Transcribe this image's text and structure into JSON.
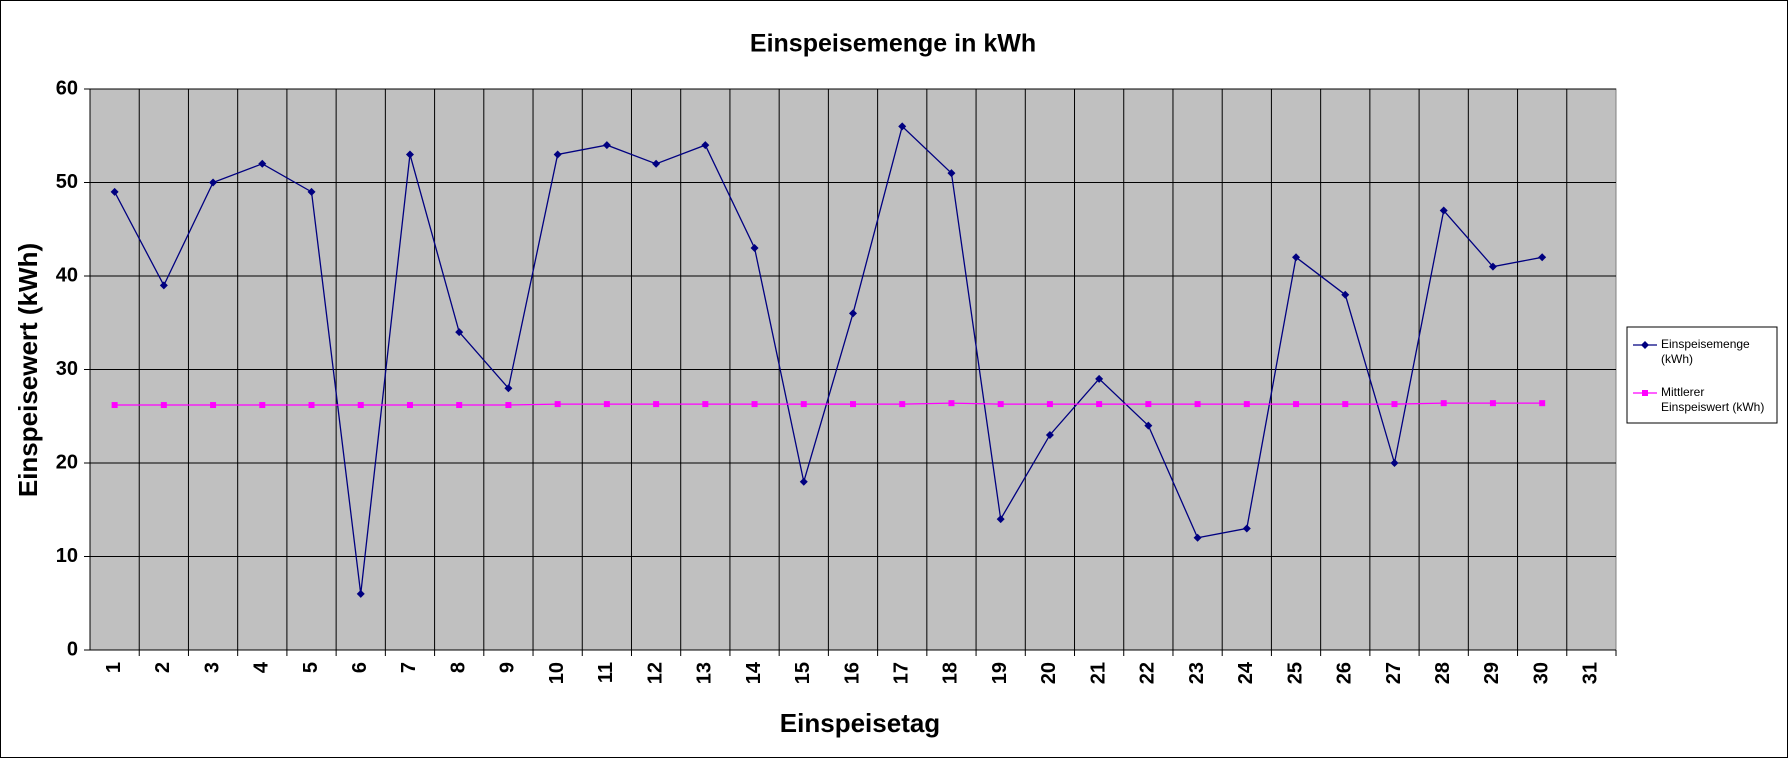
{
  "chart_data": {
    "type": "line",
    "title": "Einspeisemenge in kWh",
    "x_label": "Einspeisetag",
    "y_label": "Einspeisewert  (kWh)",
    "categories": [
      "1",
      "2",
      "3",
      "4",
      "5",
      "6",
      "7",
      "8",
      "9",
      "10",
      "11",
      "12",
      "13",
      "14",
      "15",
      "16",
      "17",
      "18",
      "19",
      "20",
      "21",
      "22",
      "23",
      "24",
      "25",
      "26",
      "27",
      "28",
      "29",
      "30",
      "31"
    ],
    "series": [
      {
        "name": "Einspeisemenge (kWh)",
        "color": "#000080",
        "marker": "diamond",
        "values": [
          49,
          39,
          50,
          52,
          49,
          6,
          53,
          34,
          28,
          53,
          54,
          52,
          54,
          43,
          18,
          36,
          56,
          51,
          14,
          23,
          29,
          24,
          12,
          13,
          42,
          38,
          20,
          47,
          41,
          42,
          null
        ]
      },
      {
        "name": "Mittlerer Einspeiswert (kWh)",
        "color": "#ff00ff",
        "marker": "square",
        "values": [
          26.2,
          26.2,
          26.2,
          26.2,
          26.2,
          26.2,
          26.2,
          26.2,
          26.2,
          26.3,
          26.3,
          26.3,
          26.3,
          26.3,
          26.3,
          26.3,
          26.3,
          26.4,
          26.3,
          26.3,
          26.3,
          26.3,
          26.3,
          26.3,
          26.3,
          26.3,
          26.3,
          26.4,
          26.4,
          26.4,
          null
        ]
      }
    ],
    "ylim": [
      0,
      60
    ],
    "yticks": [
      0,
      10,
      20,
      30,
      40,
      50,
      60
    ],
    "grid": true,
    "legend": "right"
  }
}
